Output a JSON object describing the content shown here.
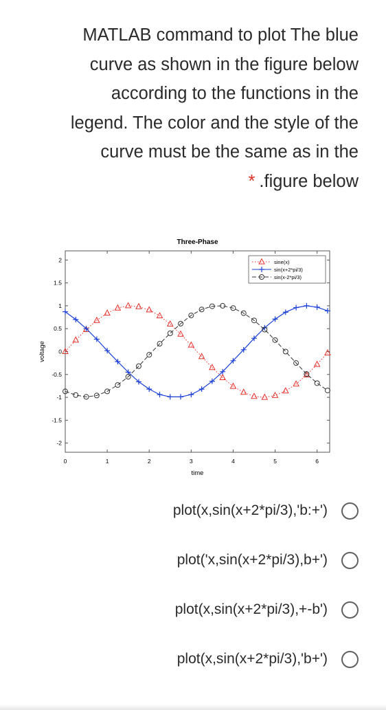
{
  "question": {
    "lines": [
      "MATLAB command to plot The blue",
      "curve as shown in the figure below",
      "according to the functions in the",
      "legend. The color and the style of the",
      "curve must be the same as in the"
    ],
    "required_mark": "*",
    "last_line": ".figure below"
  },
  "chart_data": {
    "type": "line",
    "title": "Three-Phase",
    "xlabel": "time",
    "ylabel": "voltage",
    "xlim": [
      0,
      6.3
    ],
    "ylim": [
      -2.2,
      2.2
    ],
    "xticks": [
      "0",
      "1",
      "2",
      "3",
      "4",
      "5",
      "6"
    ],
    "yticks": [
      "2",
      "1.5",
      "1",
      "0.5",
      "0",
      "-0.5",
      "-1",
      "-1.5",
      "-2"
    ],
    "legend_position": "top-right",
    "x": [
      0,
      0.25,
      0.5,
      0.75,
      1,
      1.25,
      1.5,
      1.75,
      2,
      2.25,
      2.5,
      2.75,
      3,
      3.25,
      3.5,
      3.75,
      4,
      4.25,
      4.5,
      4.75,
      5,
      5.25,
      5.5,
      5.75,
      6,
      6.25
    ],
    "series": [
      {
        "name": "sine(x)",
        "color": "#e8322e",
        "line_style": "dotted",
        "marker": "triangle",
        "values": [
          0,
          0.25,
          0.48,
          0.68,
          0.84,
          0.95,
          1,
          0.98,
          0.91,
          0.78,
          0.6,
          0.38,
          0.14,
          -0.11,
          -0.35,
          -0.57,
          -0.76,
          -0.89,
          -0.98,
          -1,
          -0.96,
          -0.86,
          -0.71,
          -0.51,
          -0.28,
          -0.03
        ]
      },
      {
        "name": "sin(x+2*pi/3)",
        "color": "#1a3fd6",
        "line_style": "solid",
        "marker": "plus",
        "values": [
          0.87,
          0.7,
          0.5,
          0.27,
          0.02,
          -0.22,
          -0.45,
          -0.66,
          -0.82,
          -0.94,
          -0.99,
          -0.99,
          -0.94,
          -0.82,
          -0.65,
          -0.44,
          -0.2,
          0.04,
          0.29,
          0.52,
          0.71,
          0.86,
          0.96,
          1,
          0.97,
          0.89
        ]
      },
      {
        "name": "sin(x-2*pi/3)",
        "color": "#333333",
        "line_style": "dashed",
        "marker": "circle",
        "values": [
          -0.87,
          -0.95,
          -0.99,
          -0.96,
          -0.87,
          -0.73,
          -0.55,
          -0.32,
          -0.07,
          0.17,
          0.4,
          0.61,
          0.79,
          0.92,
          0.99,
          1,
          0.95,
          0.84,
          0.68,
          0.48,
          0.25,
          0,
          -0.25,
          -0.49,
          -0.69,
          -0.85
        ]
      }
    ]
  },
  "options": [
    {
      "label": "plot(x,sin(x+2*pi/3),'b:+')"
    },
    {
      "label": "plot('x,sin(x+2*pi/3),b+')"
    },
    {
      "label": "plot(x,sin(x+2*pi/3),+-b')"
    },
    {
      "label": "plot(x,sin(x+2*pi/3),'b+')"
    }
  ]
}
